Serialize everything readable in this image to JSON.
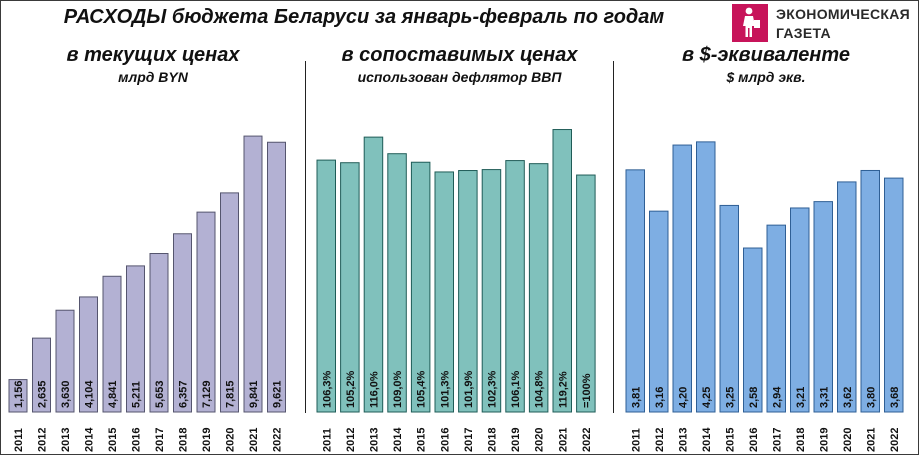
{
  "title": "РАСХОДЫ бюджета Беларуси за январь-февраль по годам",
  "logo": {
    "line1": "ЭКОНОМИЧЕСКАЯ",
    "line2": "ГАЗЕТА",
    "color": "#c7145a"
  },
  "panels": [
    {
      "title": "в текущих ценах",
      "subtitle": "млрд BYN"
    },
    {
      "title": "в сопоставимых ценах",
      "subtitle": "использован дефлятор ВВП"
    },
    {
      "title": "в $-эквиваленте",
      "subtitle": "$ млрд экв."
    }
  ],
  "chart_data": [
    {
      "type": "bar",
      "categories": [
        "2011",
        "2012",
        "2013",
        "2014",
        "2015",
        "2016",
        "2017",
        "2018",
        "2019",
        "2020",
        "2021",
        "2022"
      ],
      "values": [
        1.156,
        2.635,
        3.63,
        4.104,
        4.841,
        5.211,
        5.653,
        6.357,
        7.129,
        7.815,
        9.841,
        9.621
      ],
      "labels": [
        "1,156",
        "2,635",
        "3,630",
        "4,104",
        "4,841",
        "5,211",
        "5,653",
        "6,357",
        "7,129",
        "7,815",
        "9,841",
        "9,621"
      ],
      "ylim": [
        0,
        10.7
      ],
      "color": "#b3b1d3"
    },
    {
      "type": "bar",
      "categories": [
        "2011",
        "2012",
        "2013",
        "2014",
        "2015",
        "2016",
        "2017",
        "2018",
        "2019",
        "2020",
        "2021",
        "2022"
      ],
      "values": [
        106.3,
        105.2,
        116.0,
        109.0,
        105.4,
        101.3,
        101.9,
        102.3,
        106.1,
        104.8,
        119.2,
        100
      ],
      "labels": [
        "106,3%",
        "105,2%",
        "116,0%",
        "109,0%",
        "105,4%",
        "101,3%",
        "101,9%",
        "102,3%",
        "106,1%",
        "104,8%",
        "119,2%",
        "=100%"
      ],
      "ylim": [
        0,
        126.6
      ],
      "color": "#80c1bc"
    },
    {
      "type": "bar",
      "categories": [
        "2011",
        "2012",
        "2013",
        "2014",
        "2015",
        "2016",
        "2017",
        "2018",
        "2019",
        "2020",
        "2021",
        "2022"
      ],
      "values": [
        3.81,
        3.16,
        4.2,
        4.25,
        3.25,
        2.58,
        2.94,
        3.21,
        3.31,
        3.62,
        3.8,
        3.68
      ],
      "labels": [
        "3,81",
        "3,16",
        "4,20",
        "4,25",
        "3,25",
        "2,58",
        "2,94",
        "3,21",
        "3,31",
        "3,62",
        "3,80",
        "3,68"
      ],
      "ylim": [
        0,
        4.72
      ],
      "color": "#7eaee3"
    }
  ]
}
